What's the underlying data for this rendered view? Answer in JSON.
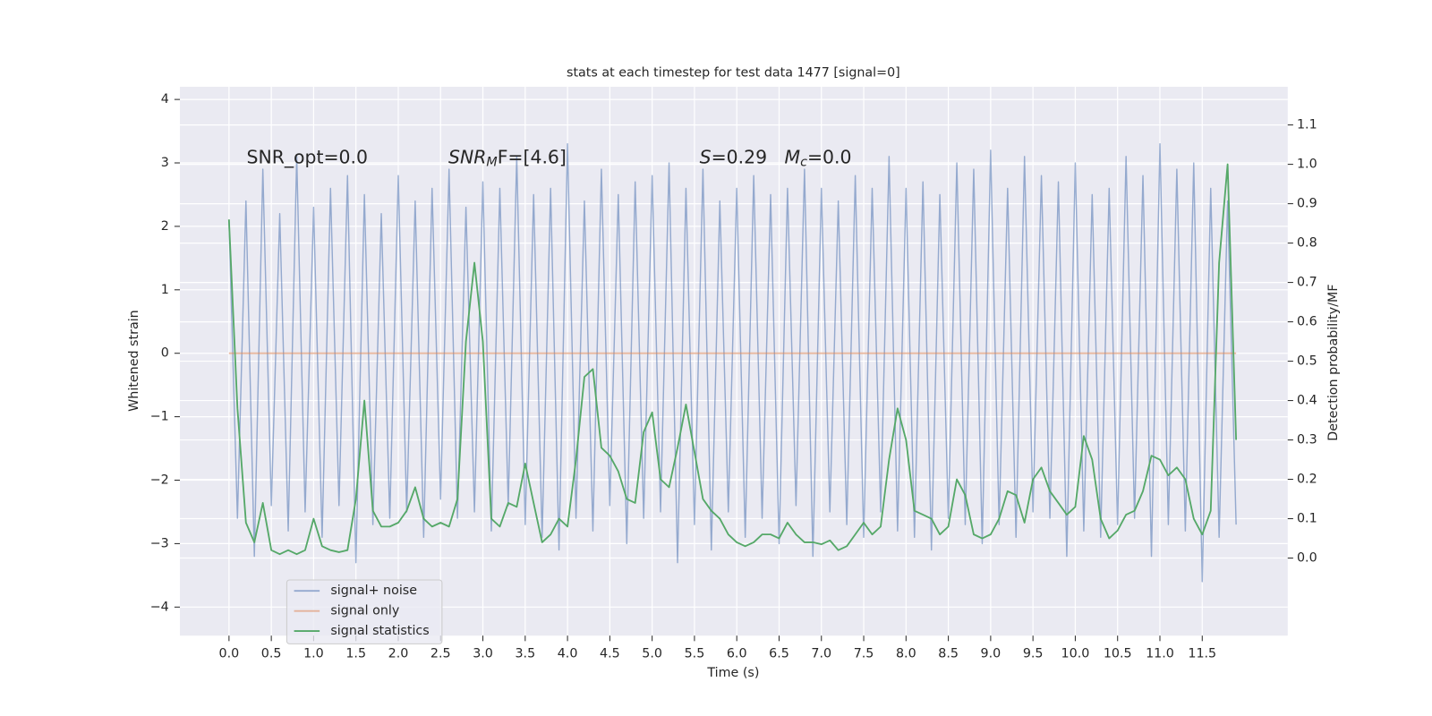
{
  "chart_data": {
    "type": "line",
    "title": "stats at each timestep for test data 1477 [signal=0]",
    "xlabel": "Time (s)",
    "ylabel": "Whitened strain",
    "y2label": "Detection probability/MF",
    "annotations": [
      "SNR_opt=0.0",
      [
        "SNR",
        "M",
        "F=[4.6]"
      ],
      [
        "S",
        "=0.29"
      ],
      [
        "M",
        "c",
        "=0.0"
      ]
    ],
    "xlim": [
      -0.58,
      12.51
    ],
    "ylim": [
      -4.45,
      4.2
    ],
    "y2lim": [
      -0.197,
      1.197
    ],
    "xticks": [
      {
        "value": 0,
        "label": "0.0"
      },
      0.5,
      {
        "value": 1,
        "label": "1.0"
      },
      1.5,
      {
        "value": 2,
        "label": "2.0"
      },
      2.5,
      {
        "value": 3,
        "label": "3.0"
      },
      3.5,
      {
        "value": 4,
        "label": "4.0"
      },
      4.5,
      {
        "value": 5,
        "label": "5.0"
      },
      5.5,
      {
        "value": 6,
        "label": "6.0"
      },
      6.5,
      {
        "value": 7,
        "label": "7.0"
      },
      7.5,
      {
        "value": 8,
        "label": "8.0"
      },
      8.5,
      {
        "value": 9,
        "label": "9.0"
      },
      9.5,
      {
        "value": 10,
        "label": "10.0"
      },
      10.5,
      {
        "value": 11,
        "label": "11.0"
      },
      11.5
    ],
    "yticks": [
      {
        "value": -4,
        "label": "−4"
      },
      {
        "value": -3,
        "label": "−3"
      },
      {
        "value": -2,
        "label": "−2"
      },
      {
        "value": -1,
        "label": "−1"
      },
      0,
      1,
      2,
      3,
      4
    ],
    "y2ticks": [
      {
        "value": 0,
        "label": "0.0"
      },
      0.1,
      0.2,
      0.3,
      0.4,
      0.5,
      0.6,
      0.7,
      0.8,
      0.9,
      {
        "value": 1,
        "label": "1.0"
      },
      1.1
    ],
    "grid": true,
    "legend": "lower left",
    "x": [
      0,
      0.1,
      0.2,
      0.3,
      0.4,
      0.5,
      0.6,
      0.7,
      0.8,
      0.9,
      1,
      1.1,
      1.2,
      1.3,
      1.4,
      1.5,
      1.6,
      1.7,
      1.8,
      1.9,
      2,
      2.1,
      2.2,
      2.3,
      2.4,
      2.5,
      2.6,
      2.7,
      2.8,
      2.9,
      3,
      3.1,
      3.2,
      3.3,
      3.4,
      3.5,
      3.6,
      3.7,
      3.8,
      3.9,
      4,
      4.1,
      4.2,
      4.3,
      4.4,
      4.5,
      4.6,
      4.7,
      4.8,
      4.9,
      5,
      5.1,
      5.2,
      5.3,
      5.4,
      5.5,
      5.6,
      5.7,
      5.8,
      5.9,
      6,
      6.1,
      6.2,
      6.3,
      6.4,
      6.5,
      6.6,
      6.7,
      6.8,
      6.9,
      7,
      7.1,
      7.2,
      7.3,
      7.4,
      7.5,
      7.6,
      7.7,
      7.8,
      7.9,
      8,
      8.1,
      8.2,
      8.3,
      8.4,
      8.5,
      8.6,
      8.7,
      8.8,
      8.9,
      9,
      9.1,
      9.2,
      9.3,
      9.4,
      9.5,
      9.6,
      9.7,
      9.8,
      9.9,
      10,
      10.1,
      10.2,
      10.3,
      10.4,
      10.5,
      10.6,
      10.7,
      10.8,
      10.9,
      11,
      11.1,
      11.2,
      11.3,
      11.4,
      11.5,
      11.6,
      11.7,
      11.8,
      11.9
    ],
    "series": [
      {
        "name": "signal+ noise",
        "color": "#4c72b0",
        "axis": "y",
        "values": [
          2.1,
          -2.6,
          2.4,
          -3.2,
          2.9,
          -2.4,
          2.2,
          -2.8,
          3.1,
          -2.5,
          2.3,
          -2.9,
          2.6,
          -2.4,
          2.8,
          -3.3,
          2.5,
          -2.7,
          2.2,
          -2.6,
          2.8,
          -2.5,
          2.4,
          -2.9,
          2.6,
          -2.3,
          2.9,
          -2.6,
          2.3,
          -2.5,
          2.7,
          -2.8,
          2.6,
          -2.4,
          3.1,
          -2.7,
          2.5,
          -2.9,
          2.6,
          -3.1,
          3.3,
          -2.6,
          2.4,
          -2.8,
          2.9,
          -2.4,
          2.5,
          -3.0,
          2.7,
          -2.6,
          2.8,
          -2.5,
          3.0,
          -3.3,
          2.6,
          -2.7,
          2.9,
          -3.1,
          2.4,
          -2.5,
          2.6,
          -2.9,
          2.8,
          -2.6,
          2.5,
          -3.0,
          2.6,
          -2.4,
          2.9,
          -3.2,
          2.6,
          -2.5,
          2.4,
          -2.7,
          2.8,
          -2.9,
          2.6,
          -2.5,
          3.1,
          -2.8,
          2.6,
          -2.9,
          2.7,
          -3.1,
          2.5,
          -2.6,
          3.0,
          -2.7,
          2.9,
          -3.0,
          3.2,
          -2.7,
          2.6,
          -2.9,
          3.1,
          -2.5,
          2.8,
          -2.6,
          2.7,
          -3.2,
          3.0,
          -2.8,
          2.5,
          -2.9,
          2.6,
          -2.7,
          3.1,
          -2.6,
          2.8,
          -3.2,
          3.3,
          -2.7,
          2.9,
          -2.8,
          3.0,
          -3.6,
          2.6,
          -2.9,
          2.4,
          -2.7
        ]
      },
      {
        "name": "signal only",
        "color": "#dd8452",
        "axis": "y",
        "values": [
          0,
          0,
          0,
          0,
          0,
          0,
          0,
          0,
          0,
          0,
          0,
          0,
          0,
          0,
          0,
          0,
          0,
          0,
          0,
          0,
          0,
          0,
          0,
          0,
          0,
          0,
          0,
          0,
          0,
          0,
          0,
          0,
          0,
          0,
          0,
          0,
          0,
          0,
          0,
          0,
          0,
          0,
          0,
          0,
          0,
          0,
          0,
          0,
          0,
          0,
          0,
          0,
          0,
          0,
          0,
          0,
          0,
          0,
          0,
          0,
          0,
          0,
          0,
          0,
          0,
          0,
          0,
          0,
          0,
          0,
          0,
          0,
          0,
          0,
          0,
          0,
          0,
          0,
          0,
          0,
          0,
          0,
          0,
          0,
          0,
          0,
          0,
          0,
          0,
          0,
          0,
          0,
          0,
          0,
          0,
          0,
          0,
          0,
          0,
          0,
          0,
          0,
          0,
          0,
          0,
          0,
          0,
          0,
          0,
          0,
          0,
          0,
          0,
          0,
          0,
          0,
          0,
          0,
          0,
          0
        ]
      },
      {
        "name": "signal statistics",
        "color": "#55a868",
        "axis": "y2",
        "values": [
          0.86,
          0.38,
          0.09,
          0.04,
          0.14,
          0.02,
          0.01,
          0.02,
          0.01,
          0.02,
          0.1,
          0.03,
          0.02,
          0.015,
          0.02,
          0.15,
          0.4,
          0.12,
          0.08,
          0.08,
          0.09,
          0.12,
          0.18,
          0.1,
          0.08,
          0.09,
          0.08,
          0.15,
          0.55,
          0.75,
          0.55,
          0.1,
          0.08,
          0.14,
          0.13,
          0.24,
          0.14,
          0.04,
          0.06,
          0.1,
          0.08,
          0.25,
          0.46,
          0.48,
          0.28,
          0.26,
          0.22,
          0.15,
          0.14,
          0.32,
          0.37,
          0.2,
          0.18,
          0.28,
          0.39,
          0.27,
          0.15,
          0.12,
          0.1,
          0.06,
          0.04,
          0.03,
          0.04,
          0.06,
          0.06,
          0.05,
          0.09,
          0.06,
          0.04,
          0.04,
          0.035,
          0.045,
          0.02,
          0.03,
          0.06,
          0.09,
          0.06,
          0.08,
          0.25,
          0.38,
          0.3,
          0.12,
          0.11,
          0.1,
          0.06,
          0.08,
          0.2,
          0.16,
          0.06,
          0.05,
          0.06,
          0.1,
          0.17,
          0.16,
          0.09,
          0.2,
          0.23,
          0.17,
          0.14,
          0.11,
          0.13,
          0.31,
          0.25,
          0.1,
          0.05,
          0.07,
          0.11,
          0.12,
          0.17,
          0.26,
          0.25,
          0.21,
          0.23,
          0.2,
          0.1,
          0.06,
          0.12,
          0.75,
          1.0,
          0.3
        ]
      }
    ]
  }
}
